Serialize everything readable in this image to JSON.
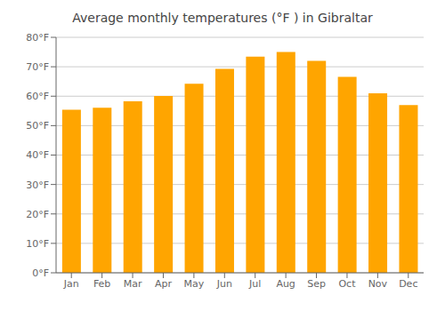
{
  "chart_data": {
    "type": "bar",
    "title": "Average monthly temperatures (°F ) in Gibraltar",
    "categories": [
      "Jan",
      "Feb",
      "Mar",
      "Apr",
      "May",
      "Jun",
      "Jul",
      "Aug",
      "Sep",
      "Oct",
      "Nov",
      "Dec"
    ],
    "values": [
      55.4,
      56.1,
      58.3,
      60.1,
      64.2,
      69.3,
      73.4,
      75.0,
      72.0,
      66.6,
      61.0,
      57.0
    ],
    "color": "#FFA500",
    "ylim": [
      0,
      80
    ],
    "yticks": [
      {
        "value": 0,
        "label": "0°F"
      },
      {
        "value": 10,
        "label": "10°F"
      },
      {
        "value": 20,
        "label": "20°F"
      },
      {
        "value": 30,
        "label": "30°F"
      },
      {
        "value": 40,
        "label": "40°F"
      },
      {
        "value": 50,
        "label": "50°F"
      },
      {
        "value": 60,
        "label": "60°F"
      },
      {
        "value": 70,
        "label": "70°F"
      },
      {
        "value": 80,
        "label": "80°F"
      }
    ],
    "grid": true
  }
}
